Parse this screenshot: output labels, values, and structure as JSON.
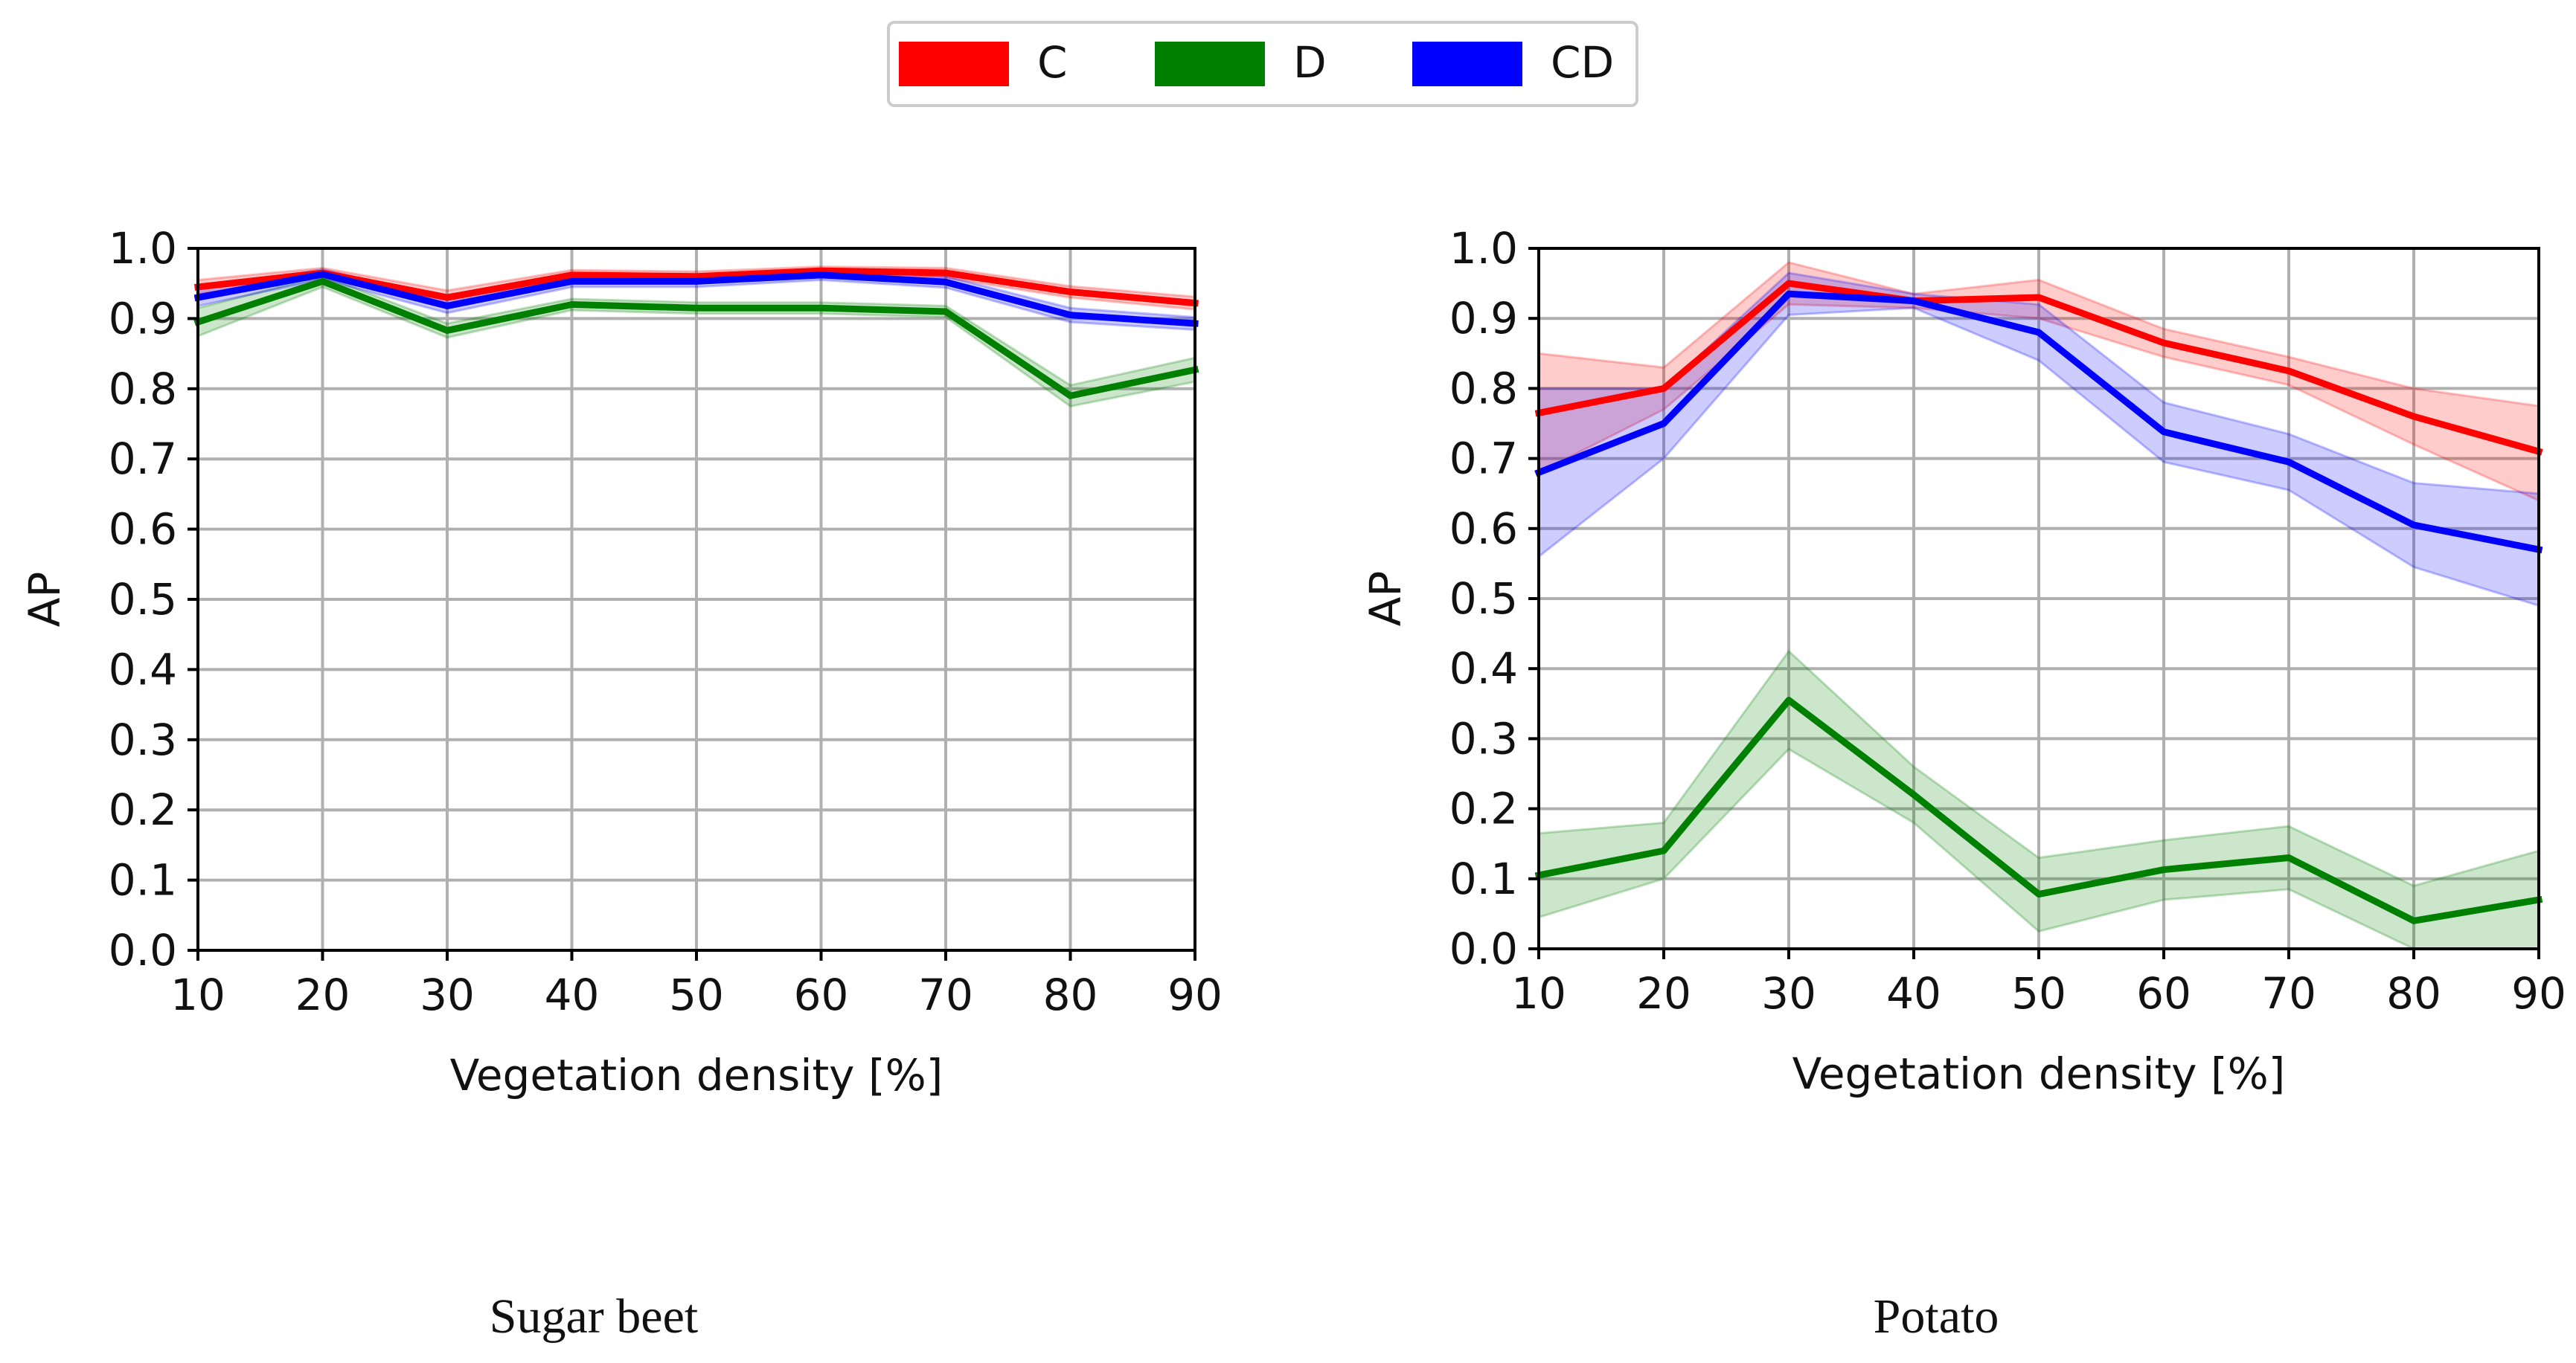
{
  "legend": {
    "items": [
      {
        "label": "C",
        "color": "#ff0000"
      },
      {
        "label": "D",
        "color": "#008000"
      },
      {
        "label": "CD",
        "color": "#0000ff"
      }
    ]
  },
  "captions": [
    "Sugar beet",
    "Potato"
  ],
  "chart_data": [
    {
      "type": "line",
      "caption": "Sugar beet",
      "xlabel": "Vegetation density [%]",
      "ylabel": "AP",
      "xlim": [
        10,
        90
      ],
      "ylim": [
        0.0,
        1.0
      ],
      "xticks": [
        "10",
        "20",
        "30",
        "40",
        "50",
        "60",
        "70",
        "80",
        "90"
      ],
      "yticks": [
        "0.0",
        "0.1",
        "0.2",
        "0.3",
        "0.4",
        "0.5",
        "0.6",
        "0.7",
        "0.8",
        "0.9",
        "1.0"
      ],
      "grid": true,
      "x": [
        10,
        20,
        30,
        40,
        50,
        60,
        70,
        80,
        90
      ],
      "series": [
        {
          "name": "C",
          "color": "#ff0000",
          "values": [
            0.945,
            0.965,
            0.93,
            0.962,
            0.96,
            0.968,
            0.965,
            0.938,
            0.922
          ],
          "lower": [
            0.935,
            0.958,
            0.92,
            0.955,
            0.953,
            0.962,
            0.958,
            0.93,
            0.913
          ],
          "upper": [
            0.955,
            0.972,
            0.94,
            0.969,
            0.967,
            0.974,
            0.972,
            0.946,
            0.931
          ]
        },
        {
          "name": "D",
          "color": "#008000",
          "values": [
            0.895,
            0.953,
            0.883,
            0.92,
            0.915,
            0.915,
            0.91,
            0.79,
            0.827
          ],
          "lower": [
            0.875,
            0.945,
            0.873,
            0.912,
            0.907,
            0.907,
            0.902,
            0.775,
            0.81
          ],
          "upper": [
            0.915,
            0.961,
            0.893,
            0.928,
            0.923,
            0.923,
            0.918,
            0.805,
            0.844
          ]
        },
        {
          "name": "CD",
          "color": "#0000ff",
          "values": [
            0.93,
            0.963,
            0.918,
            0.953,
            0.953,
            0.962,
            0.952,
            0.905,
            0.893
          ],
          "lower": [
            0.918,
            0.956,
            0.908,
            0.945,
            0.945,
            0.955,
            0.944,
            0.895,
            0.884
          ],
          "upper": [
            0.942,
            0.97,
            0.928,
            0.961,
            0.961,
            0.969,
            0.96,
            0.915,
            0.902
          ]
        }
      ]
    },
    {
      "type": "line",
      "caption": "Potato",
      "xlabel": "Vegetation density [%]",
      "ylabel": "AP",
      "xlim": [
        10,
        90
      ],
      "ylim": [
        0.0,
        1.0
      ],
      "xticks": [
        "10",
        "20",
        "30",
        "40",
        "50",
        "60",
        "70",
        "80",
        "90"
      ],
      "yticks": [
        "0.0",
        "0.1",
        "0.2",
        "0.3",
        "0.4",
        "0.5",
        "0.6",
        "0.7",
        "0.8",
        "0.9",
        "1.0"
      ],
      "grid": true,
      "x": [
        10,
        20,
        30,
        40,
        50,
        60,
        70,
        80,
        90
      ],
      "series": [
        {
          "name": "C",
          "color": "#ff0000",
          "values": [
            0.765,
            0.8,
            0.95,
            0.925,
            0.93,
            0.865,
            0.825,
            0.76,
            0.71
          ],
          "lower": [
            0.68,
            0.77,
            0.92,
            0.915,
            0.9,
            0.845,
            0.805,
            0.72,
            0.64
          ],
          "upper": [
            0.85,
            0.83,
            0.98,
            0.935,
            0.955,
            0.885,
            0.845,
            0.8,
            0.775
          ]
        },
        {
          "name": "D",
          "color": "#008000",
          "values": [
            0.105,
            0.14,
            0.355,
            0.22,
            0.078,
            0.113,
            0.13,
            0.04,
            0.07
          ],
          "lower": [
            0.045,
            0.1,
            0.285,
            0.18,
            0.025,
            0.07,
            0.085,
            0.0,
            0.0
          ],
          "upper": [
            0.165,
            0.18,
            0.425,
            0.26,
            0.13,
            0.155,
            0.175,
            0.09,
            0.14
          ]
        },
        {
          "name": "CD",
          "color": "#0000ff",
          "values": [
            0.68,
            0.75,
            0.935,
            0.925,
            0.88,
            0.738,
            0.695,
            0.605,
            0.57
          ],
          "lower": [
            0.56,
            0.7,
            0.905,
            0.915,
            0.84,
            0.695,
            0.655,
            0.545,
            0.49
          ],
          "upper": [
            0.8,
            0.8,
            0.965,
            0.935,
            0.92,
            0.78,
            0.735,
            0.665,
            0.65
          ]
        }
      ]
    }
  ]
}
